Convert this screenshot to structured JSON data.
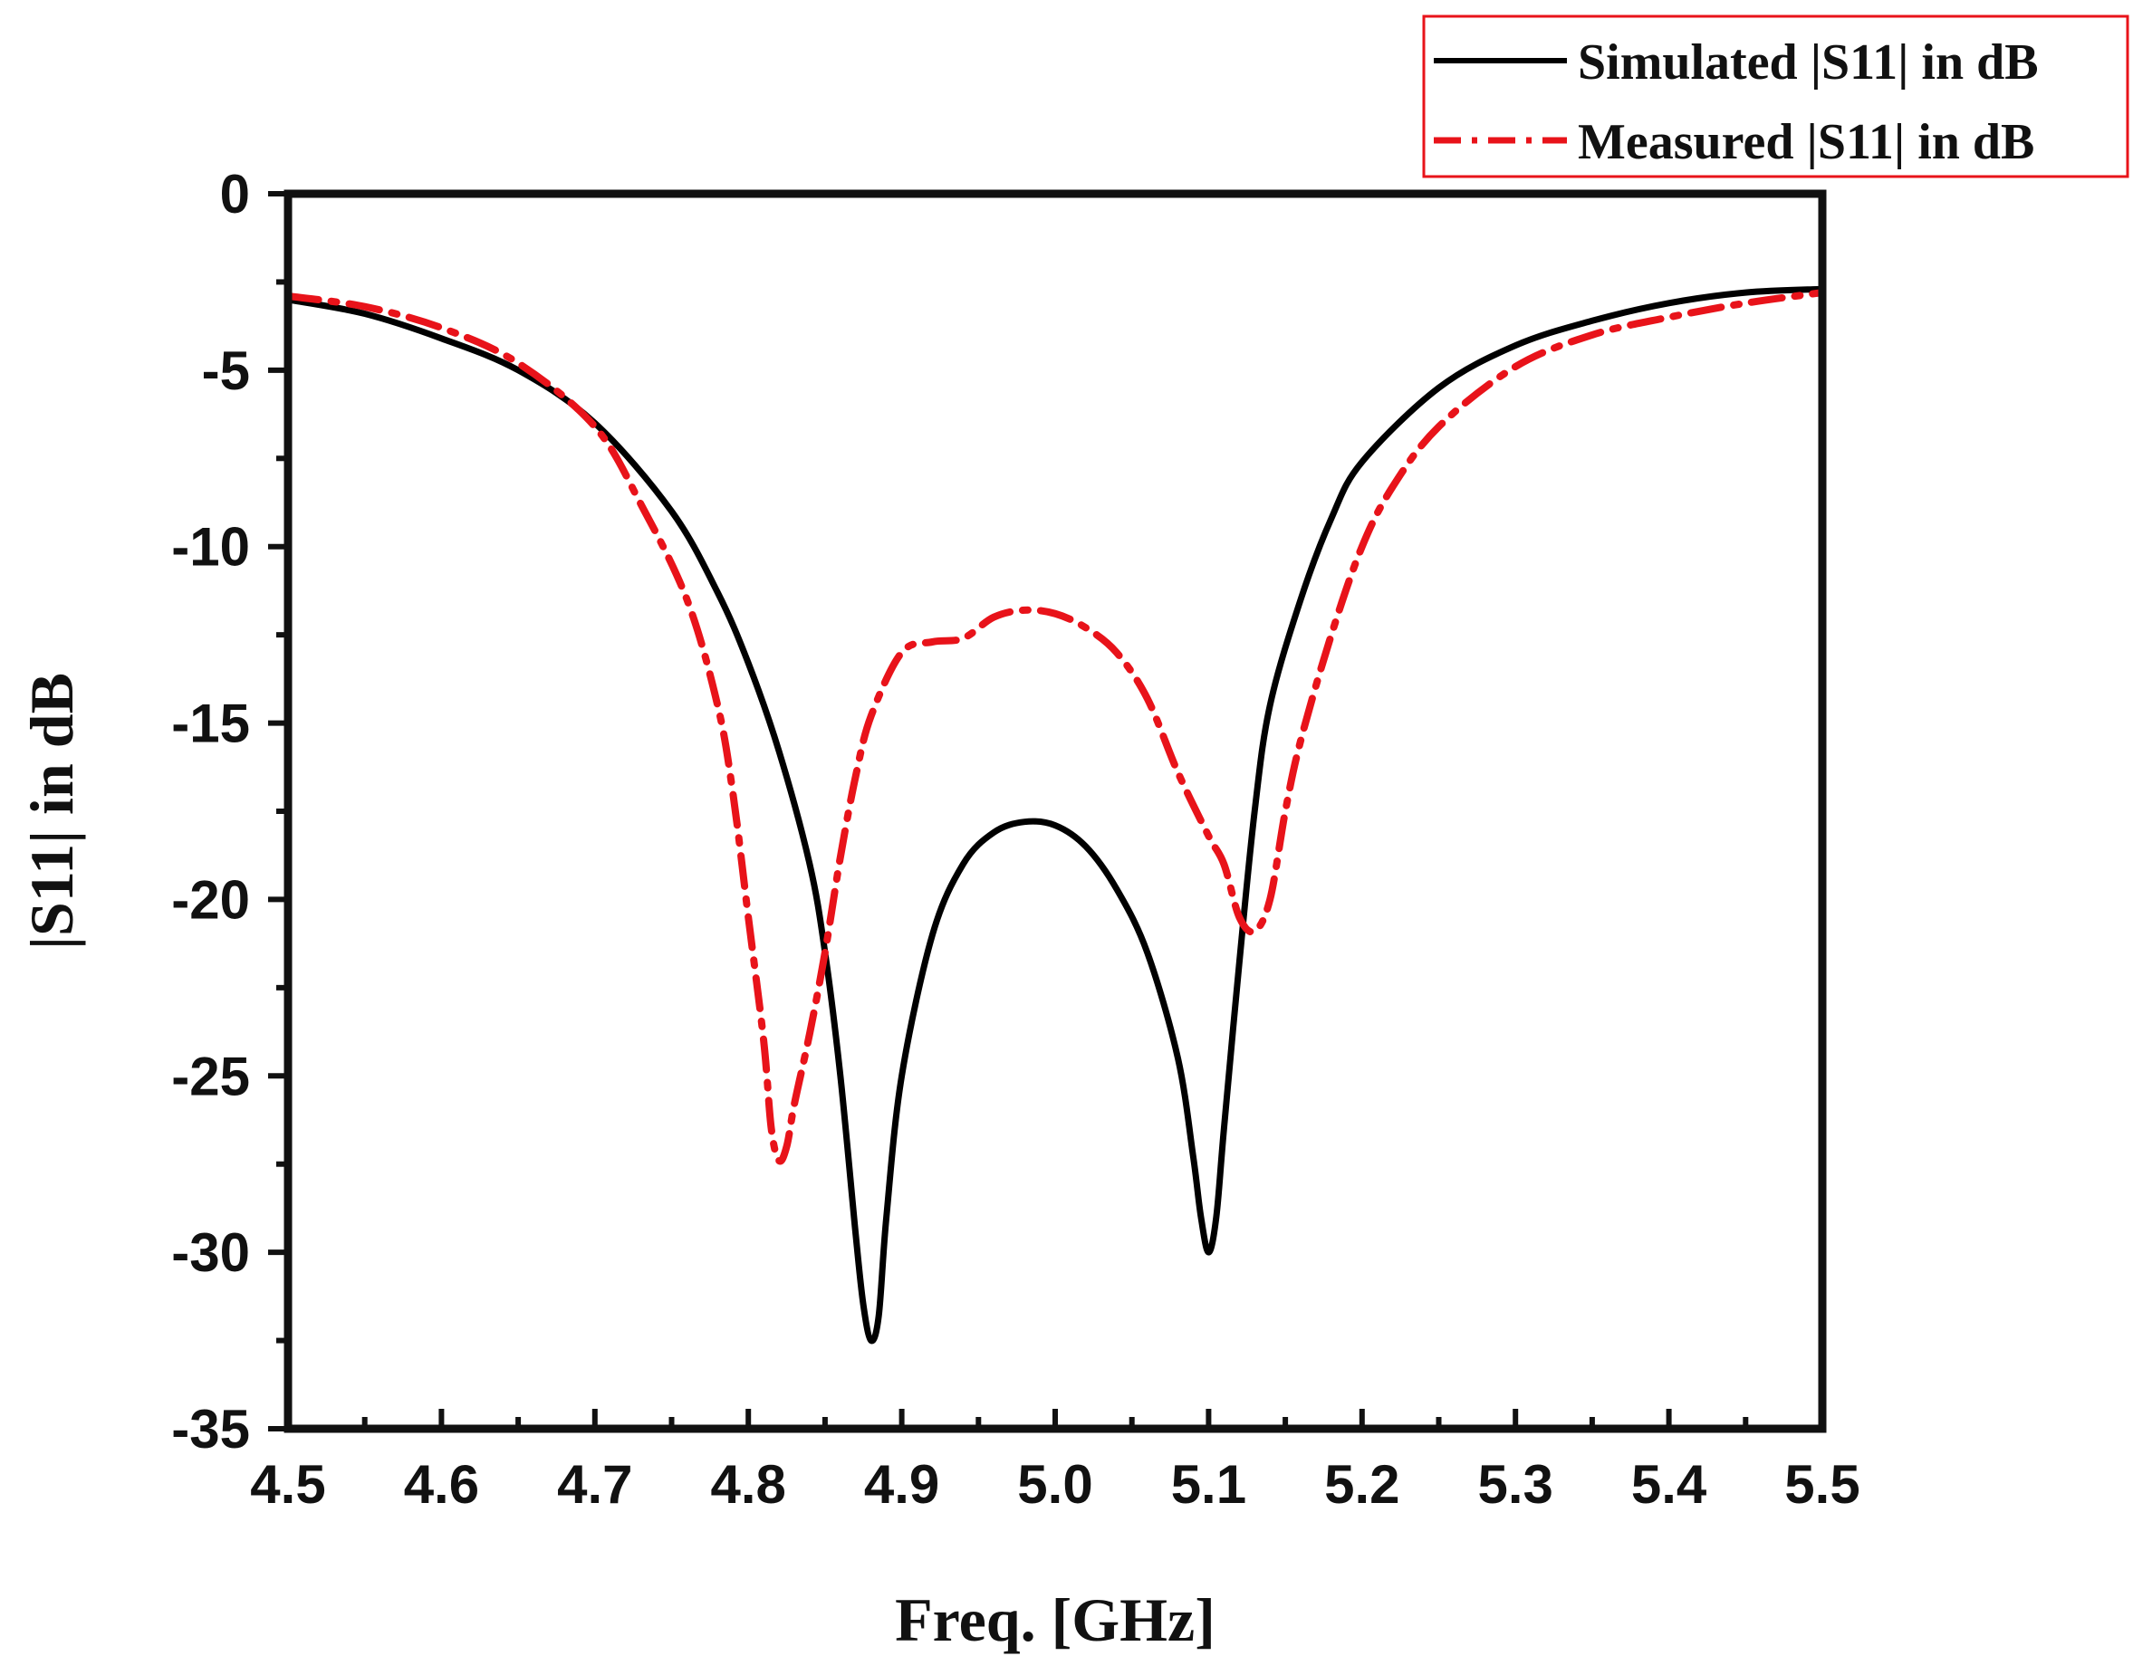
{
  "chart_data": {
    "type": "line",
    "xlabel": "Freq. [GHz]",
    "ylabel": "|S11| in dB",
    "xlim": [
      4.5,
      5.5
    ],
    "ylim": [
      -35,
      0
    ],
    "xticks": [
      "4.5",
      "4.6",
      "4.7",
      "4.8",
      "4.9",
      "5.0",
      "5.1",
      "5.2",
      "5.3",
      "5.4",
      "5.5"
    ],
    "yticks": [
      "0",
      "-5",
      "-10",
      "-15",
      "-20",
      "-25",
      "-30",
      "-35"
    ],
    "grid": false,
    "legend_position": "top-right",
    "series": [
      {
        "name": "Simulated |S11| in dB",
        "color": "#000000",
        "style": "solid",
        "x": [
          4.5,
          4.55,
          4.6,
          4.65,
          4.7,
          4.75,
          4.78,
          4.8,
          4.82,
          4.84,
          4.85,
          4.86,
          4.87,
          4.875,
          4.88,
          4.885,
          4.89,
          4.9,
          4.92,
          4.94,
          4.96,
          4.98,
          5.0,
          5.02,
          5.04,
          5.06,
          5.08,
          5.09,
          5.095,
          5.1,
          5.105,
          5.11,
          5.12,
          5.13,
          5.14,
          5.16,
          5.18,
          5.2,
          5.25,
          5.3,
          5.35,
          5.4,
          5.45,
          5.5
        ],
        "y": [
          -3.0,
          -3.4,
          -4.1,
          -5.0,
          -6.5,
          -9.0,
          -11.3,
          -13.3,
          -15.8,
          -19.0,
          -21.5,
          -25.0,
          -29.5,
          -31.5,
          -32.5,
          -31.8,
          -29.0,
          -25.0,
          -21.0,
          -19.0,
          -18.1,
          -17.8,
          -17.9,
          -18.5,
          -19.7,
          -21.5,
          -24.5,
          -27.3,
          -29.0,
          -30.0,
          -29.0,
          -26.5,
          -21.8,
          -17.5,
          -14.5,
          -11.5,
          -9.2,
          -7.6,
          -5.5,
          -4.3,
          -3.6,
          -3.1,
          -2.8,
          -2.7
        ]
      },
      {
        "name": "Measured |S11| in dB",
        "color": "#e8131a",
        "style": "dashdot",
        "x": [
          4.5,
          4.55,
          4.6,
          4.65,
          4.7,
          4.73,
          4.76,
          4.78,
          4.79,
          4.8,
          4.81,
          4.815,
          4.82,
          4.825,
          4.83,
          4.84,
          4.85,
          4.86,
          4.87,
          4.88,
          4.9,
          4.92,
          4.94,
          4.96,
          4.98,
          5.0,
          5.02,
          5.04,
          5.06,
          5.08,
          5.1,
          5.11,
          5.12,
          5.13,
          5.14,
          5.15,
          5.16,
          5.18,
          5.2,
          5.22,
          5.25,
          5.3,
          5.35,
          5.4,
          5.45,
          5.5
        ],
        "y": [
          -2.9,
          -3.2,
          -3.8,
          -4.8,
          -6.6,
          -8.8,
          -11.5,
          -14.5,
          -17.0,
          -20.5,
          -24.0,
          -26.5,
          -27.4,
          -27.0,
          -25.8,
          -23.8,
          -21.5,
          -18.8,
          -16.5,
          -14.8,
          -13.0,
          -12.7,
          -12.6,
          -12.0,
          -11.8,
          -11.9,
          -12.3,
          -13.0,
          -14.3,
          -16.4,
          -18.2,
          -19.0,
          -20.5,
          -20.9,
          -20.0,
          -17.5,
          -15.5,
          -12.5,
          -10.0,
          -8.3,
          -6.6,
          -4.9,
          -4.0,
          -3.5,
          -3.1,
          -2.8
        ]
      }
    ]
  }
}
